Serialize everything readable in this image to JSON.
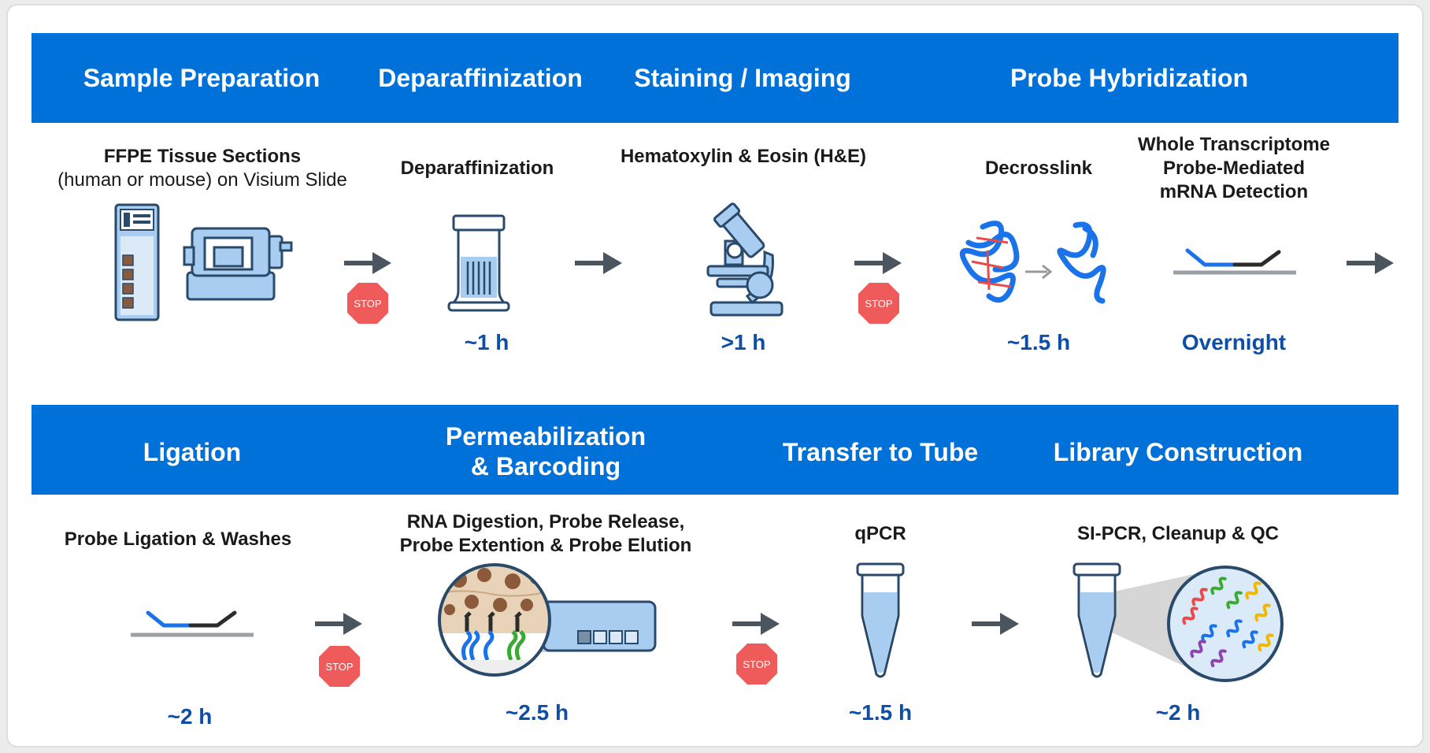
{
  "rows": [
    {
      "headers": [
        {
          "id": "sample-preparation",
          "text": "Sample Preparation"
        },
        {
          "id": "deparaffinization",
          "text": "Deparaffinization"
        },
        {
          "id": "staining-imaging",
          "text": "Staining / Imaging"
        },
        {
          "id": "probe-hybridization",
          "text": "Probe Hybridization"
        }
      ],
      "steps": [
        {
          "id": "ffpe",
          "label_line1": "FFPE Tissue Sections",
          "label_line2": "(human or mouse) on Visium Slide",
          "time": ""
        },
        {
          "id": "deparaffinization",
          "label": "Deparaffinization",
          "time": "~1 h"
        },
        {
          "id": "he",
          "label": "Hematoxylin & Eosin (H&E)",
          "time": ">1 h"
        },
        {
          "id": "decrosslink",
          "label": "Decrosslink",
          "time": "~1.5 h"
        },
        {
          "id": "whole-transcriptome",
          "label_lines": [
            "Whole Transcriptome",
            "Probe-Mediated",
            "mRNA Detection"
          ],
          "time": "Overnight"
        }
      ]
    },
    {
      "headers": [
        {
          "id": "ligation",
          "text": "Ligation"
        },
        {
          "id": "permeabilization",
          "text_line1": "Permeabilization",
          "text_line2": "& Barcoding"
        },
        {
          "id": "transfer-to-tube",
          "text": "Transfer to Tube"
        },
        {
          "id": "library-construction",
          "text": "Library Construction"
        }
      ],
      "steps": [
        {
          "id": "probe-ligation",
          "label": "Probe Ligation & Washes",
          "time": "~2 h"
        },
        {
          "id": "rna-digestion",
          "label_line1": "RNA Digestion, Probe Release,",
          "label_line2": "Probe Extention & Probe Elution",
          "time": "~2.5 h"
        },
        {
          "id": "qpcr",
          "label": "qPCR",
          "time": "~1.5 h"
        },
        {
          "id": "si-pcr",
          "label": "SI-PCR, Cleanup & QC",
          "time": "~2 h"
        }
      ]
    }
  ],
  "stop_sign_text": "STOP",
  "colors": {
    "header_band": "#0071d9",
    "time_text": "#0d4fa8",
    "stop_sign": "#ef5a5a",
    "icon_fill": "#a8cdf0",
    "icon_stroke": "#2a4a6b",
    "arrow": "#4a5560",
    "probe_blue": "#1a73e8",
    "probe_dark": "#2b2b2b",
    "tissue_brown": "#8a5a3b"
  },
  "icons": [
    "slide-icon",
    "microtome-icon",
    "coplin-jar-icon",
    "microscope-icon",
    "decrosslink-icon",
    "probe-hybridization-icon",
    "probe-ligation-icon",
    "tissue-magnifier-icon",
    "slide-cassette-icon",
    "tube-icon",
    "library-magnifier-icon",
    "arrow-icon",
    "stop-sign-icon"
  ]
}
